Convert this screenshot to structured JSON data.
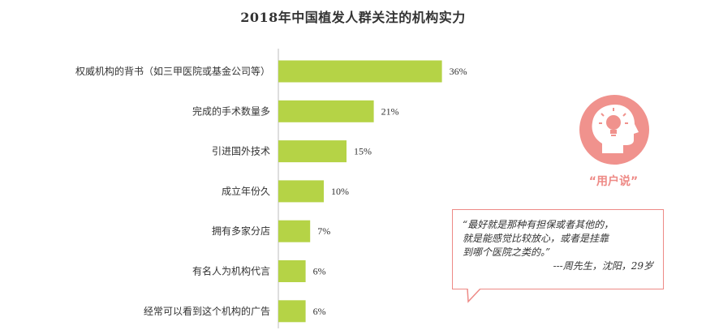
{
  "chart_data": {
    "type": "bar",
    "orientation": "horizontal",
    "title": "2018年中国植发人群关注的机构实力",
    "categories": [
      "权威机构的背书（如三甲医院或基金公司等）",
      "完成的手术数量多",
      "引进国外技术",
      "成立年份久",
      "拥有多家分店",
      "有名人为机构代言",
      "经常可以看到这个机构的广告"
    ],
    "values": [
      36,
      21,
      15,
      10,
      7,
      6,
      6
    ],
    "value_labels": [
      "36%",
      "21%",
      "15%",
      "10%",
      "7%",
      "6%",
      "6%"
    ],
    "unit": "%",
    "xlim": [
      0,
      40
    ],
    "grid": false,
    "legend": "none",
    "bar_color": "#b5d346",
    "axis_color": "#bdbdbd"
  },
  "callout": {
    "label": "“用户说”",
    "icon": "head-lightbulb-icon",
    "icon_color": "#f0928d",
    "quote_lines": [
      "“最好就是那种有担保或者其他的，",
      "就是能感觉比较放心，或者是挂靠",
      "到哪个医院之类的。”"
    ],
    "signature": "---周先生，沈阳，29岁",
    "border_color": "#ee8a86"
  }
}
